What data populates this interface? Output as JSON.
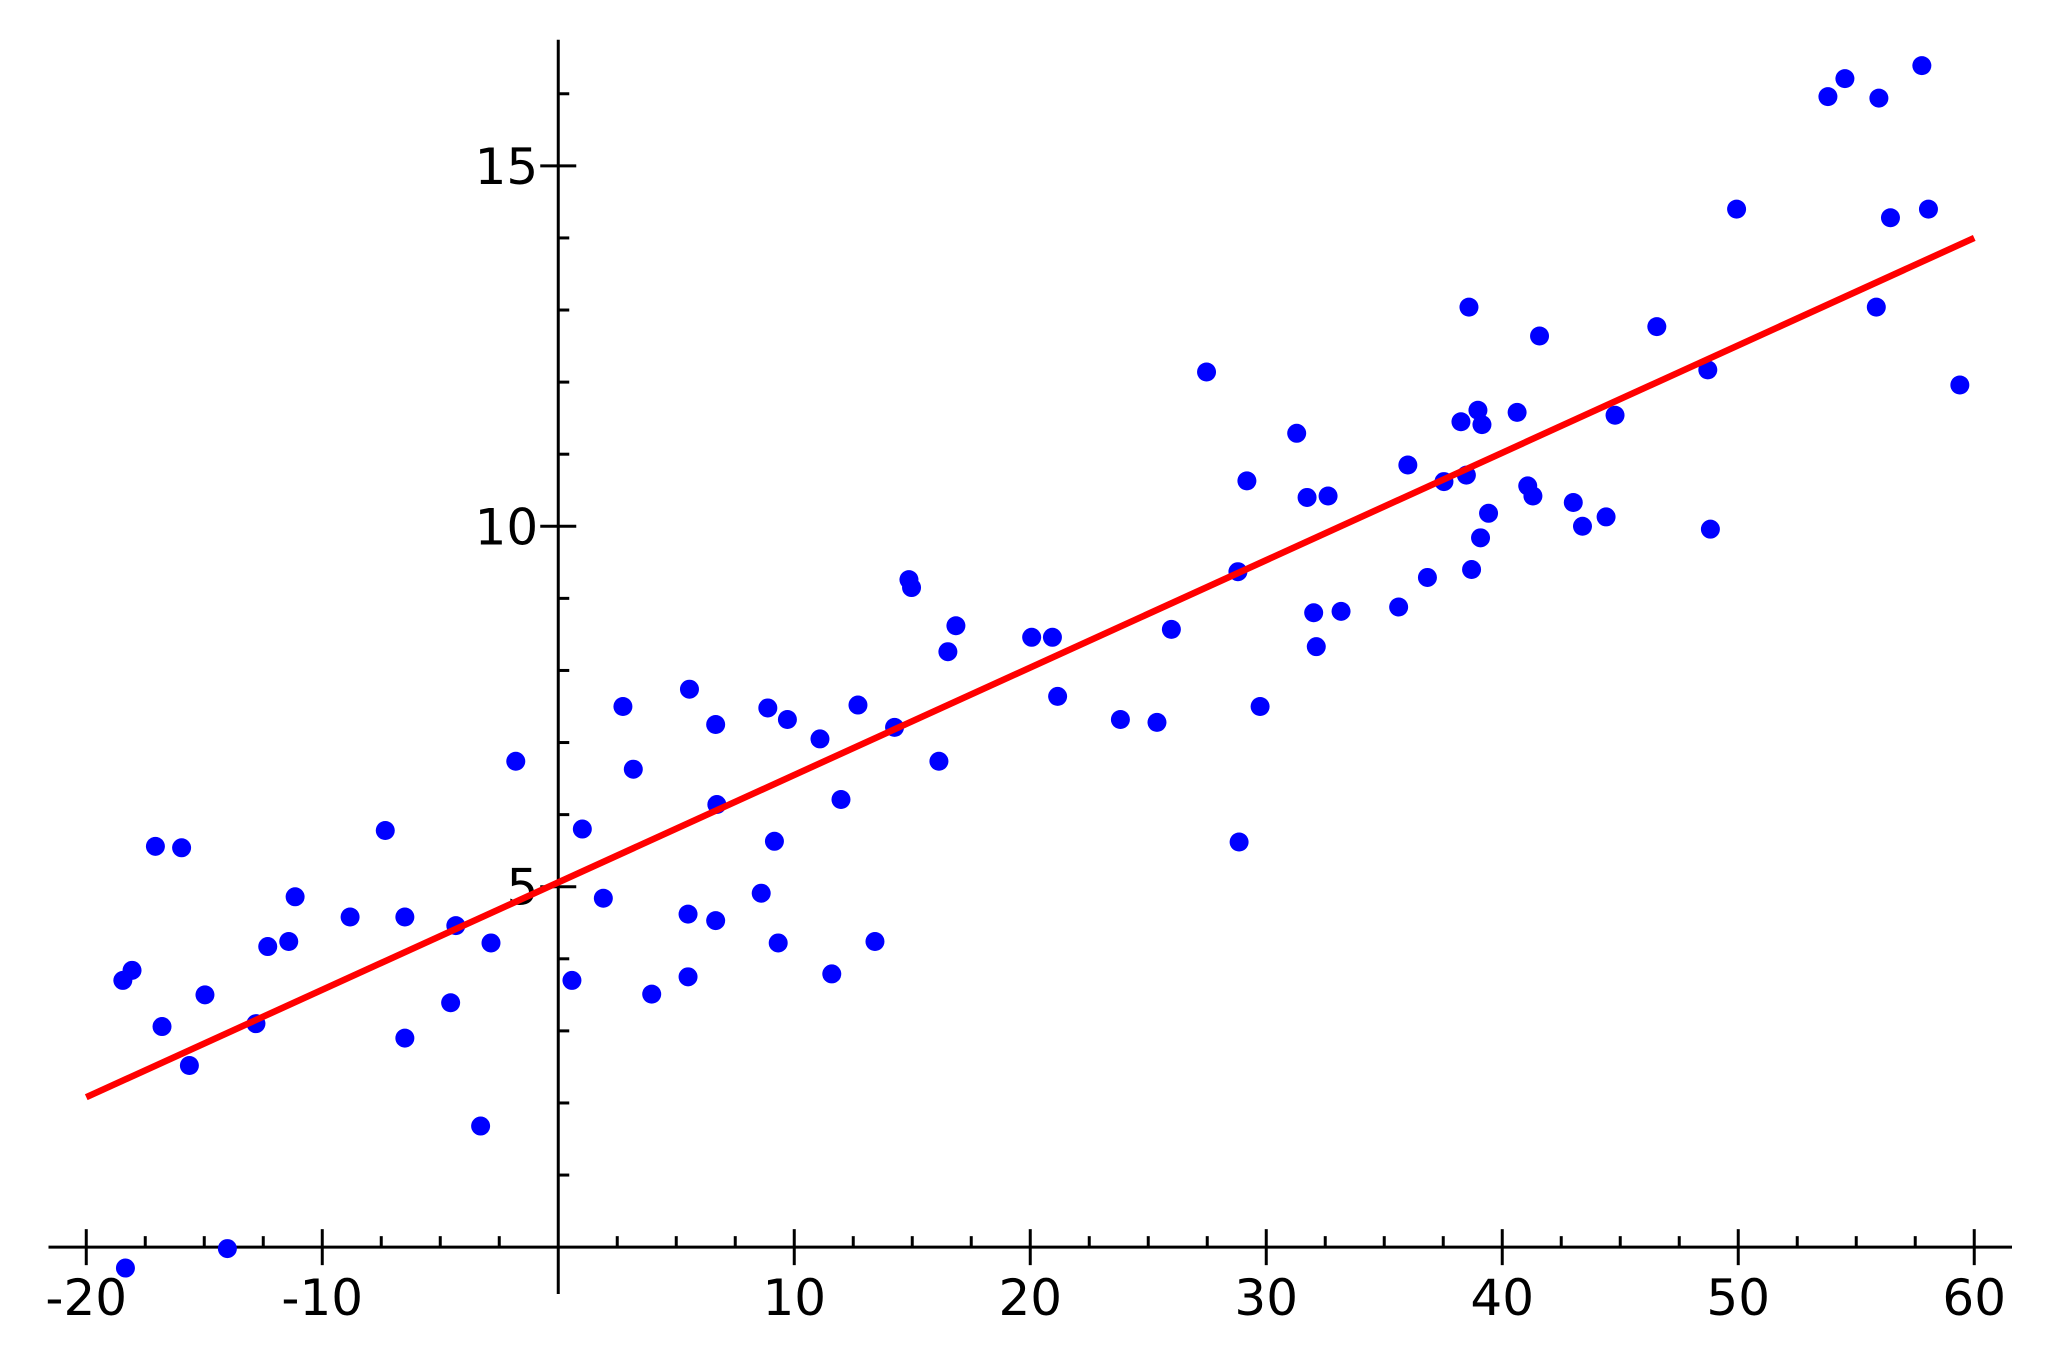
{
  "chart_data": {
    "type": "scatter",
    "xlim": [
      -21.6,
      61.6
    ],
    "ylim": [
      -0.65,
      16.75
    ],
    "xticks": [
      -20,
      -10,
      10,
      20,
      30,
      40,
      50,
      60
    ],
    "yticks": [
      5,
      10,
      15
    ],
    "xminorticks": [
      -17.5,
      -15,
      -12.5,
      -7.5,
      -5,
      -2.5,
      2.5,
      5,
      7.5,
      12.5,
      15,
      17.5,
      22.5,
      25,
      27.5,
      32.5,
      35,
      37.5,
      42.5,
      45,
      47.5,
      52.5,
      55,
      57.5
    ],
    "yminorticks": [
      1,
      2,
      3,
      4,
      6,
      7,
      8,
      9,
      11,
      12,
      13,
      14,
      16
    ],
    "color": "#0000ff",
    "x": [
      -18.34,
      -14.02,
      -18.45,
      -18.06,
      -17.07,
      -15.96,
      -16.79,
      -15.63,
      -14.97,
      -12.81,
      -12.31,
      -11.42,
      -11.15,
      -8.82,
      -7.33,
      -6.5,
      -6.5,
      -4.56,
      -4.34,
      -3.29,
      -2.85,
      -1.8,
      0.58,
      1.02,
      1.91,
      2.74,
      3.18,
      3.96,
      5.5,
      5.5,
      5.56,
      6.67,
      6.67,
      6.72,
      8.6,
      8.88,
      9.16,
      9.32,
      9.71,
      11.09,
      11.59,
      11.98,
      12.7,
      13.42,
      14.25,
      14.86,
      14.97,
      16.13,
      16.51,
      16.85,
      20.06,
      20.94,
      21.16,
      23.82,
      25.37,
      25.98,
      27.47,
      28.8,
      28.85,
      29.18,
      29.74,
      31.29,
      31.73,
      32.01,
      32.12,
      32.62,
      33.17,
      35.61,
      36.0,
      36.83,
      37.53,
      38.25,
      38.48,
      38.59,
      38.7,
      38.97,
      39.08,
      39.14,
      39.42,
      40.63,
      41.08,
      41.3,
      41.58,
      43.01,
      43.4,
      44.4,
      44.78,
      46.55,
      48.71,
      48.82,
      49.93,
      53.8,
      54.52,
      55.96,
      55.85,
      56.45,
      57.78,
      58.06,
      59.39
    ],
    "y": [
      -0.29,
      -0.02,
      3.7,
      3.84,
      5.56,
      5.54,
      3.06,
      2.52,
      3.5,
      3.1,
      4.17,
      4.24,
      4.86,
      4.58,
      5.78,
      4.58,
      2.9,
      3.39,
      4.46,
      1.68,
      4.22,
      6.74,
      3.7,
      5.8,
      4.84,
      7.5,
      6.63,
      3.51,
      3.75,
      4.62,
      7.74,
      7.25,
      4.53,
      6.14,
      4.91,
      7.48,
      5.63,
      4.22,
      7.32,
      7.05,
      3.79,
      6.21,
      7.52,
      4.24,
      7.21,
      9.26,
      9.15,
      6.74,
      8.26,
      8.62,
      8.46,
      8.46,
      7.64,
      7.32,
      7.28,
      8.57,
      12.14,
      9.37,
      5.62,
      10.63,
      7.5,
      11.29,
      10.4,
      8.8,
      8.33,
      10.42,
      8.82,
      8.88,
      10.85,
      9.29,
      10.62,
      11.45,
      10.71,
      13.04,
      9.4,
      11.61,
      9.84,
      11.41,
      10.18,
      11.58,
      10.56,
      10.42,
      12.64,
      10.33,
      10.0,
      10.13,
      11.54,
      12.77,
      12.17,
      9.96,
      14.4,
      15.96,
      16.21,
      15.94,
      13.04,
      14.28,
      16.39,
      14.4,
      11.96
    ],
    "fit": {
      "x": [
        -20,
        60
      ],
      "y": [
        2.08,
        14.0
      ],
      "color": "#ff0000"
    }
  }
}
